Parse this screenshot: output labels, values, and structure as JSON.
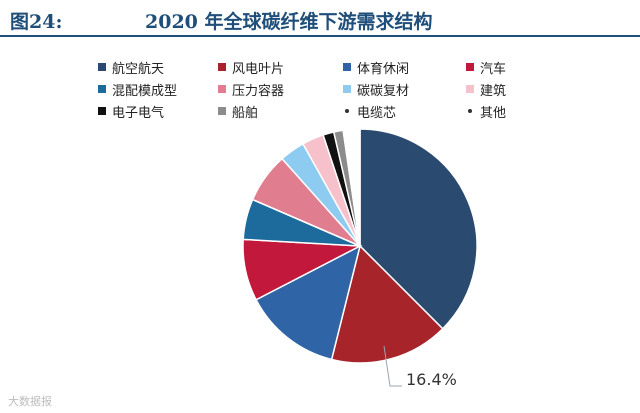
{
  "header": {
    "figure_label": "图24:",
    "title": "2020 年全球碳纤维下游需求结构"
  },
  "watermark": "大数据报",
  "chart_data": {
    "type": "pie",
    "title": "2020 年全球碳纤维下游需求结构",
    "start_angle_deg": 0,
    "direction": "clockwise",
    "slices": [
      {
        "label": "航空航天",
        "value": 37.5,
        "color": "#2b4a6f"
      },
      {
        "label": "风电叶片",
        "value": 16.4,
        "color": "#a6242a",
        "data_label": "16.4%"
      },
      {
        "label": "体育休闲",
        "value": 13.5,
        "color": "#2f65a7"
      },
      {
        "label": "汽车",
        "value": 8.5,
        "color": "#c2183b"
      },
      {
        "label": "混配模成型",
        "value": 5.6,
        "color": "#1d6a9c"
      },
      {
        "label": "压力容器",
        "value": 6.9,
        "color": "#e07e90"
      },
      {
        "label": "碳碳复材",
        "value": 3.5,
        "color": "#8ecbf1"
      },
      {
        "label": "建筑",
        "value": 3.0,
        "color": "#f7c1cc"
      },
      {
        "label": "电子电气",
        "value": 1.5,
        "color": "#111111"
      },
      {
        "label": "船舶",
        "value": 1.3,
        "color": "#8c8c8c"
      },
      {
        "label": "电缆芯",
        "value": 1.0,
        "color": "#ffffff"
      },
      {
        "label": "其他",
        "value": 1.3,
        "color": "#ffffff"
      }
    ],
    "legend": {
      "position": "top",
      "items": [
        {
          "label": "航空航天",
          "color": "#2b4a6f",
          "marker": "square"
        },
        {
          "label": "风电叶片",
          "color": "#a6242a",
          "marker": "square"
        },
        {
          "label": "体育休闲",
          "color": "#2f65a7",
          "marker": "square"
        },
        {
          "label": "汽车",
          "color": "#c2183b",
          "marker": "square"
        },
        {
          "label": "混配模成型",
          "color": "#1d6a9c",
          "marker": "square"
        },
        {
          "label": "压力容器",
          "color": "#e07e90",
          "marker": "square"
        },
        {
          "label": "碳碳复材",
          "color": "#8ecbf1",
          "marker": "square"
        },
        {
          "label": "建筑",
          "color": "#f7c1cc",
          "marker": "square"
        },
        {
          "label": "电子电气",
          "color": "#111111",
          "marker": "square"
        },
        {
          "label": "船舶",
          "color": "#8c8c8c",
          "marker": "square"
        },
        {
          "label": "电缆芯",
          "color": "#333333",
          "marker": "dot"
        },
        {
          "label": "其他",
          "color": "#333333",
          "marker": "dot"
        }
      ]
    }
  }
}
